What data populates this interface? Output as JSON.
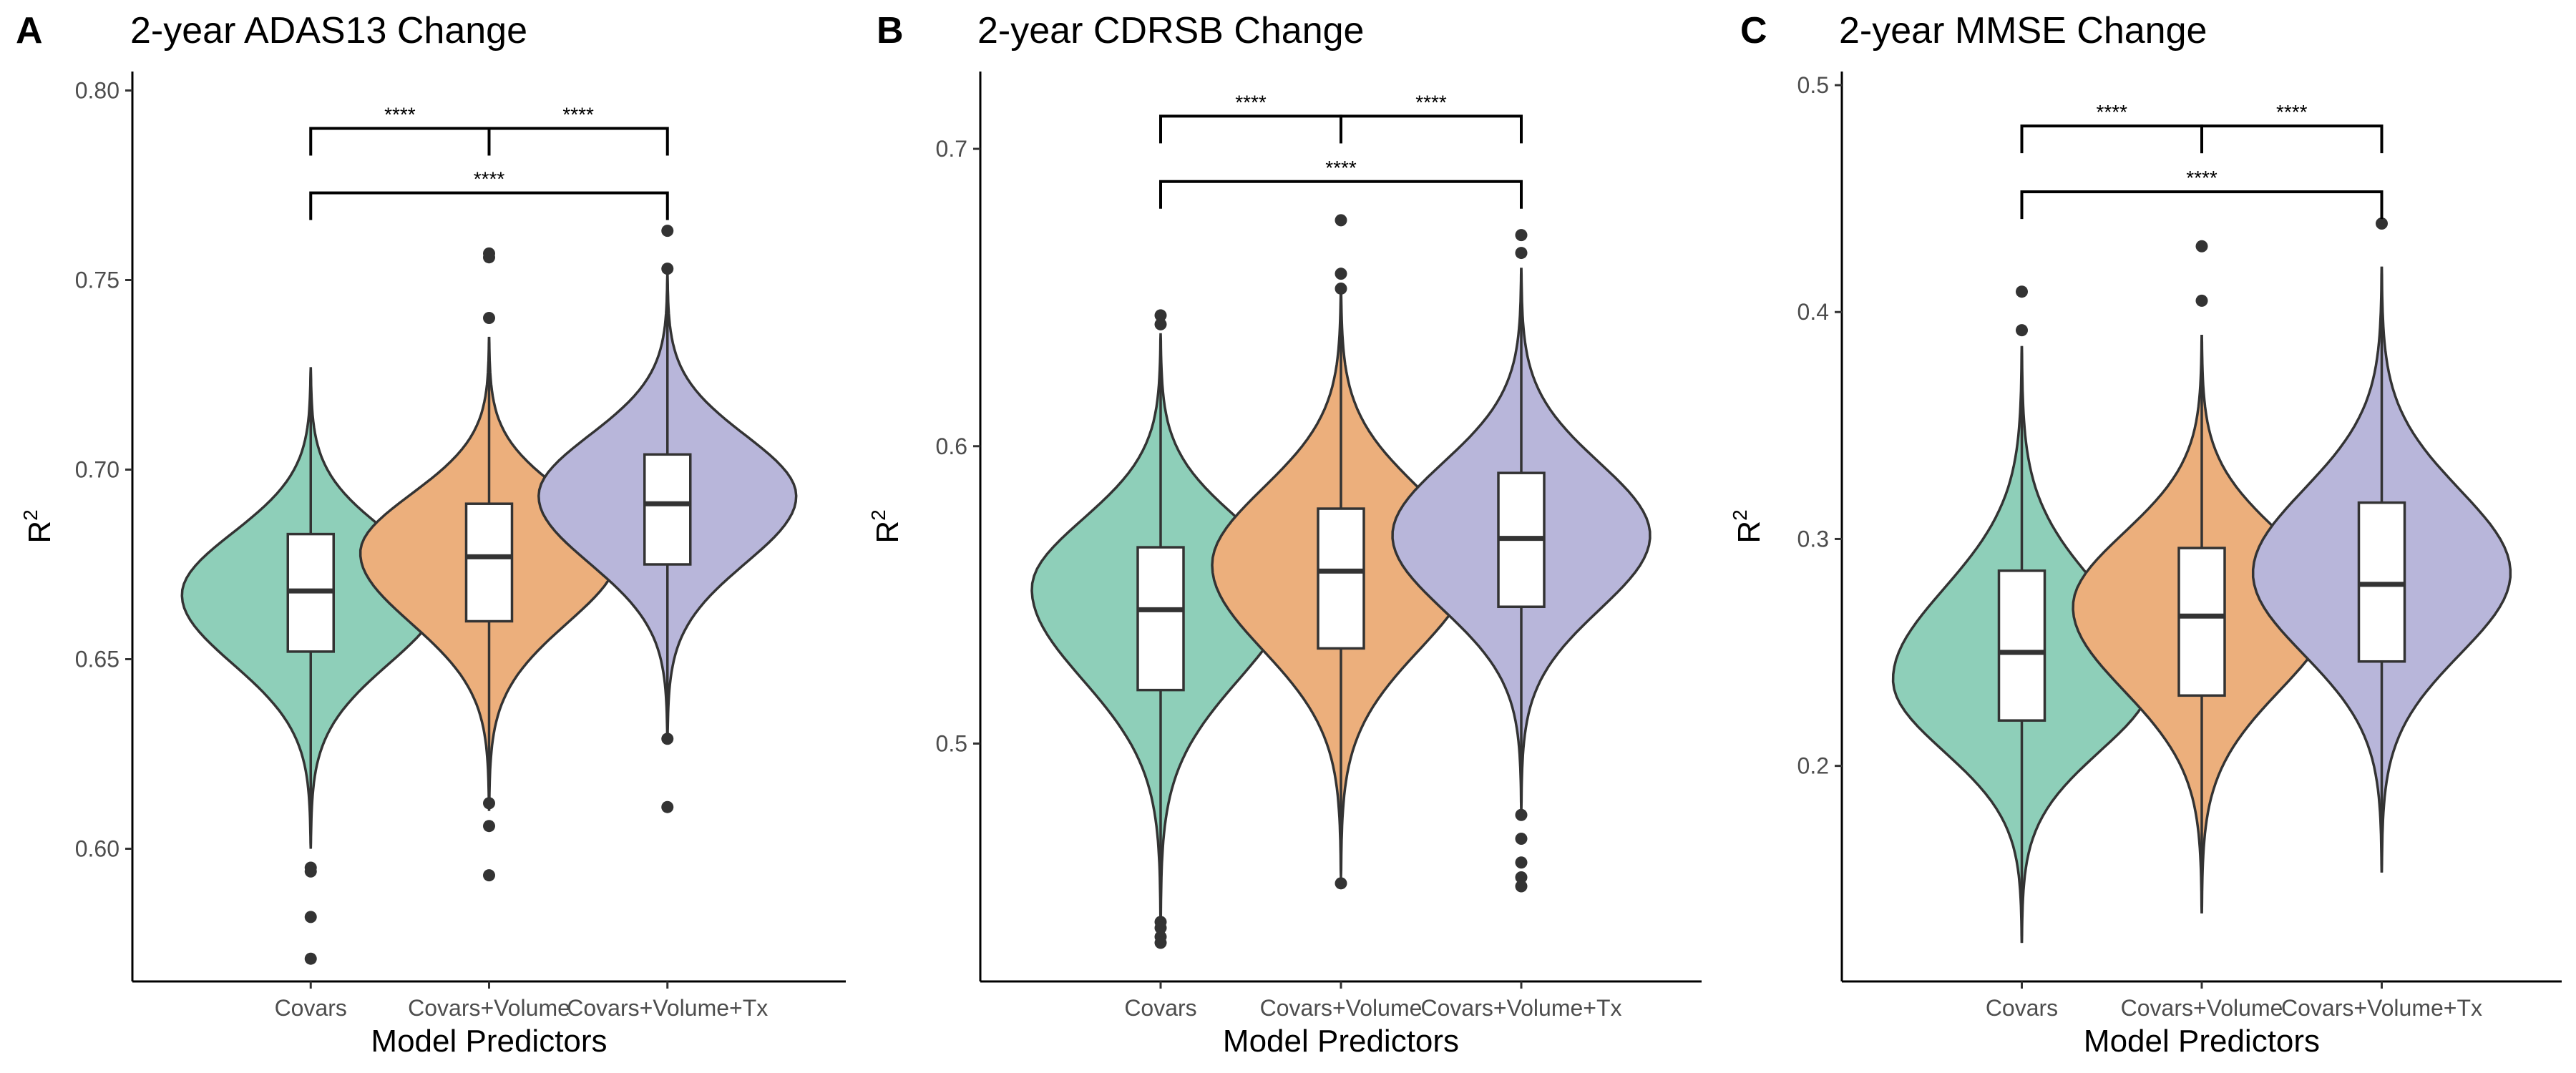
{
  "figure": {
    "xlabel": "Model Predictors",
    "ylabel": "R",
    "ylabel_sup": "2",
    "categories": [
      "Covars",
      "Covars+Volume",
      "Covars+Volume+Tx"
    ]
  },
  "colors": {
    "fills": [
      "#8ecfb9",
      "#ecaf7c",
      "#b8b6da"
    ],
    "outline": "#333333"
  },
  "chart_data": [
    {
      "type": "violin",
      "letter": "A",
      "title": "2-year ADAS13 Change",
      "xlabel": "Model Predictors",
      "ylabel": "R2",
      "ylim": [
        0.565,
        0.805
      ],
      "yticks": [
        0.6,
        0.65,
        0.7,
        0.75,
        0.8
      ],
      "ytick_labels": [
        "0.60",
        "0.65",
        "0.70",
        "0.75",
        "0.80"
      ],
      "categories": [
        "Covars",
        "Covars+Volume",
        "Covars+Volume+Tx"
      ],
      "series": [
        {
          "name": "Covars",
          "q1": 0.652,
          "median": 0.668,
          "q3": 0.683,
          "lower": 0.605,
          "upper": 0.727,
          "violin_min": 0.6,
          "violin_max": 0.727,
          "mode": 0.667,
          "outliers": [
            0.595,
            0.594,
            0.582,
            0.571
          ]
        },
        {
          "name": "Covars+Volume",
          "q1": 0.66,
          "median": 0.677,
          "q3": 0.691,
          "lower": 0.614,
          "upper": 0.735,
          "violin_min": 0.61,
          "violin_max": 0.735,
          "mode": 0.678,
          "outliers": [
            0.757,
            0.756,
            0.74,
            0.612,
            0.606,
            0.593
          ]
        },
        {
          "name": "Covars+Volume+Tx",
          "q1": 0.675,
          "median": 0.691,
          "q3": 0.704,
          "lower": 0.632,
          "upper": 0.75,
          "violin_min": 0.628,
          "violin_max": 0.752,
          "mode": 0.693,
          "outliers": [
            0.763,
            0.753,
            0.629,
            0.611
          ]
        }
      ],
      "comparisons": [
        {
          "from": 0,
          "to": 1,
          "label": "****",
          "y": 0.79
        },
        {
          "from": 1,
          "to": 2,
          "label": "****",
          "y": 0.79
        },
        {
          "from": 0,
          "to": 2,
          "label": "****",
          "y": 0.773
        }
      ]
    },
    {
      "type": "violin",
      "letter": "B",
      "title": "2-year CDRSB Change",
      "xlabel": "Model Predictors",
      "ylabel": "R2",
      "ylim": [
        0.42,
        0.726
      ],
      "yticks": [
        0.5,
        0.6,
        0.7
      ],
      "ytick_labels": [
        "0.5",
        "0.6",
        "0.7"
      ],
      "categories": [
        "Covars",
        "Covars+Volume",
        "Covars+Volume+Tx"
      ],
      "series": [
        {
          "name": "Covars",
          "q1": 0.518,
          "median": 0.545,
          "q3": 0.566,
          "lower": 0.445,
          "upper": 0.635,
          "violin_min": 0.44,
          "violin_max": 0.638,
          "mode": 0.552,
          "outliers": [
            0.644,
            0.641,
            0.44,
            0.438,
            0.435,
            0.433
          ]
        },
        {
          "name": "Covars+Volume",
          "q1": 0.532,
          "median": 0.558,
          "q3": 0.579,
          "lower": 0.458,
          "upper": 0.65,
          "violin_min": 0.455,
          "violin_max": 0.655,
          "mode": 0.56,
          "outliers": [
            0.676,
            0.658,
            0.653,
            0.453
          ]
        },
        {
          "name": "Covars+Volume+Tx",
          "q1": 0.546,
          "median": 0.569,
          "q3": 0.591,
          "lower": 0.478,
          "upper": 0.66,
          "violin_min": 0.478,
          "violin_max": 0.66,
          "mode": 0.57,
          "outliers": [
            0.671,
            0.665,
            0.476,
            0.468,
            0.46,
            0.455,
            0.452
          ]
        }
      ],
      "comparisons": [
        {
          "from": 0,
          "to": 1,
          "label": "****",
          "y": 0.711
        },
        {
          "from": 1,
          "to": 2,
          "label": "****",
          "y": 0.711
        },
        {
          "from": 0,
          "to": 2,
          "label": "****",
          "y": 0.689
        }
      ]
    },
    {
      "type": "violin",
      "letter": "C",
      "title": "2-year MMSE Change",
      "xlabel": "Model Predictors",
      "ylabel": "R2",
      "ylim": [
        0.105,
        0.506
      ],
      "yticks": [
        0.2,
        0.3,
        0.4,
        0.5
      ],
      "ytick_labels": [
        "0.2",
        "0.3",
        "0.4",
        "0.5"
      ],
      "categories": [
        "Covars",
        "Covars+Volume",
        "Covars+Volume+Tx"
      ],
      "series": [
        {
          "name": "Covars",
          "q1": 0.22,
          "median": 0.25,
          "q3": 0.286,
          "lower": 0.122,
          "upper": 0.385,
          "violin_min": 0.122,
          "violin_max": 0.385,
          "mode": 0.238,
          "outliers": [
            0.409,
            0.392
          ]
        },
        {
          "name": "Covars+Volume",
          "q1": 0.231,
          "median": 0.266,
          "q3": 0.296,
          "lower": 0.135,
          "upper": 0.39,
          "violin_min": 0.135,
          "violin_max": 0.39,
          "mode": 0.27,
          "outliers": [
            0.429,
            0.405
          ]
        },
        {
          "name": "Covars+Volume+Tx",
          "q1": 0.246,
          "median": 0.28,
          "q3": 0.316,
          "lower": 0.153,
          "upper": 0.42,
          "violin_min": 0.153,
          "violin_max": 0.42,
          "mode": 0.285,
          "outliers": [
            0.439
          ]
        }
      ],
      "comparisons": [
        {
          "from": 0,
          "to": 1,
          "label": "****",
          "y": 0.482
        },
        {
          "from": 1,
          "to": 2,
          "label": "****",
          "y": 0.482
        },
        {
          "from": 0,
          "to": 2,
          "label": "****",
          "y": 0.453
        }
      ]
    }
  ]
}
